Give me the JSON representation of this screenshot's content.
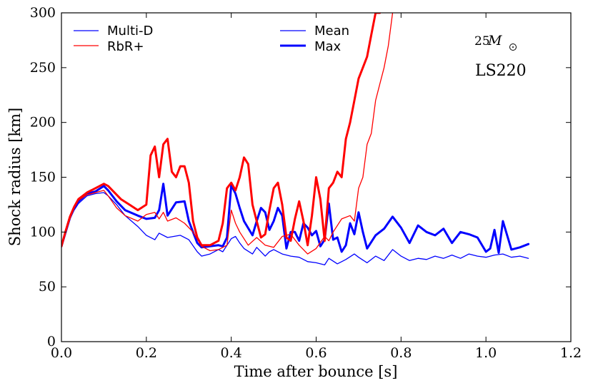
{
  "chart_data": {
    "type": "line",
    "title": "",
    "xlabel": "Time after bounce [s]",
    "ylabel": "Shock radius [km]",
    "xlim": [
      0.0,
      1.2
    ],
    "ylim": [
      0,
      300
    ],
    "xticks": [
      "0.0",
      "0.2",
      "0.4",
      "0.6",
      "0.8",
      "1.0",
      "1.2"
    ],
    "xtick_values": [
      0.0,
      0.2,
      0.4,
      0.6,
      0.8,
      1.0,
      1.2
    ],
    "yticks": [
      "0",
      "50",
      "100",
      "150",
      "200",
      "250",
      "300"
    ],
    "ytick_values": [
      0,
      50,
      100,
      150,
      200,
      250,
      300
    ],
    "grid": false,
    "legend_position": "top-left",
    "legend": [
      {
        "label": "Multi-D",
        "color": "#0000ff",
        "style": "thin"
      },
      {
        "label": "RbR+",
        "color": "#ff0000",
        "style": "thin"
      },
      {
        "label": "Mean",
        "color": "#0000ff",
        "style": "thin"
      },
      {
        "label": "Max",
        "color": "#0000ff",
        "style": "thick"
      }
    ],
    "annotations": {
      "mass_number": "25",
      "mass_symbol": "M",
      "eos": "LS220"
    },
    "series": [
      {
        "name": "Multi-D Mean",
        "color": "#0000ff",
        "width": "thin",
        "x": [
          0.0,
          0.01,
          0.02,
          0.03,
          0.04,
          0.06,
          0.08,
          0.1,
          0.11,
          0.13,
          0.15,
          0.18,
          0.2,
          0.22,
          0.23,
          0.25,
          0.28,
          0.3,
          0.32,
          0.33,
          0.35,
          0.37,
          0.38,
          0.4,
          0.41,
          0.42,
          0.43,
          0.45,
          0.46,
          0.48,
          0.49,
          0.5,
          0.52,
          0.54,
          0.56,
          0.58,
          0.6,
          0.62,
          0.63,
          0.65,
          0.67,
          0.69,
          0.7,
          0.72,
          0.74,
          0.76,
          0.78,
          0.8,
          0.82,
          0.84,
          0.86,
          0.88,
          0.9,
          0.92,
          0.94,
          0.96,
          0.98,
          1.0,
          1.02,
          1.04,
          1.06,
          1.08,
          1.1
        ],
        "y": [
          87,
          100,
          112,
          120,
          126,
          133,
          135,
          136,
          133,
          125,
          115,
          105,
          97,
          93,
          99,
          95,
          97,
          93,
          82,
          78,
          80,
          84,
          82,
          94,
          96,
          90,
          85,
          80,
          86,
          78,
          82,
          84,
          80,
          78,
          77,
          73,
          72,
          70,
          76,
          71,
          75,
          80,
          77,
          72,
          78,
          74,
          84,
          78,
          74,
          76,
          75,
          78,
          76,
          79,
          76,
          80,
          78,
          77,
          79,
          80,
          77,
          78,
          76
        ]
      },
      {
        "name": "Multi-D Max",
        "color": "#0000ff",
        "width": "thick",
        "x": [
          0.0,
          0.01,
          0.02,
          0.03,
          0.04,
          0.06,
          0.08,
          0.1,
          0.11,
          0.13,
          0.15,
          0.18,
          0.2,
          0.22,
          0.23,
          0.24,
          0.25,
          0.27,
          0.29,
          0.3,
          0.32,
          0.33,
          0.35,
          0.37,
          0.38,
          0.39,
          0.4,
          0.41,
          0.42,
          0.43,
          0.45,
          0.46,
          0.47,
          0.48,
          0.49,
          0.5,
          0.51,
          0.52,
          0.53,
          0.54,
          0.55,
          0.56,
          0.57,
          0.58,
          0.59,
          0.6,
          0.61,
          0.62,
          0.63,
          0.64,
          0.65,
          0.66,
          0.67,
          0.68,
          0.69,
          0.7,
          0.71,
          0.72,
          0.74,
          0.76,
          0.78,
          0.8,
          0.82,
          0.84,
          0.86,
          0.88,
          0.9,
          0.92,
          0.94,
          0.96,
          0.98,
          1.0,
          1.01,
          1.02,
          1.03,
          1.04,
          1.06,
          1.08,
          1.1
        ],
        "y": [
          87,
          100,
          113,
          122,
          128,
          135,
          137,
          142,
          138,
          128,
          120,
          115,
          112,
          113,
          120,
          144,
          115,
          127,
          128,
          110,
          90,
          86,
          87,
          88,
          87,
          95,
          143,
          135,
          122,
          110,
          97,
          110,
          122,
          118,
          102,
          110,
          122,
          115,
          85,
          100,
          100,
          92,
          108,
          104,
          97,
          101,
          87,
          93,
          126,
          93,
          95,
          82,
          88,
          108,
          98,
          118,
          100,
          85,
          97,
          103,
          114,
          104,
          90,
          106,
          100,
          97,
          103,
          90,
          100,
          98,
          95,
          82,
          85,
          102,
          81,
          110,
          84,
          86,
          89
        ]
      },
      {
        "name": "RbR+ Mean",
        "color": "#ff0000",
        "width": "thin",
        "x": [
          0.0,
          0.01,
          0.02,
          0.03,
          0.04,
          0.06,
          0.08,
          0.1,
          0.11,
          0.13,
          0.15,
          0.18,
          0.2,
          0.22,
          0.23,
          0.24,
          0.25,
          0.27,
          0.29,
          0.31,
          0.33,
          0.35,
          0.37,
          0.39,
          0.4,
          0.41,
          0.42,
          0.44,
          0.46,
          0.48,
          0.5,
          0.52,
          0.54,
          0.56,
          0.58,
          0.6,
          0.62,
          0.63,
          0.64,
          0.66,
          0.68,
          0.69,
          0.7,
          0.71,
          0.72,
          0.73,
          0.74,
          0.75,
          0.76,
          0.77,
          0.78
        ],
        "y": [
          87,
          100,
          112,
          122,
          129,
          134,
          136,
          138,
          133,
          122,
          115,
          110,
          116,
          118,
          112,
          118,
          110,
          113,
          108,
          100,
          87,
          83,
          84,
          88,
          120,
          108,
          100,
          88,
          95,
          88,
          86,
          96,
          98,
          88,
          80,
          85,
          96,
          92,
          100,
          112,
          115,
          110,
          140,
          150,
          180,
          190,
          220,
          235,
          250,
          270,
          300
        ]
      },
      {
        "name": "RbR+ Max",
        "color": "#ff0000",
        "width": "thick",
        "x": [
          0.0,
          0.01,
          0.02,
          0.03,
          0.04,
          0.06,
          0.08,
          0.1,
          0.11,
          0.12,
          0.14,
          0.16,
          0.18,
          0.2,
          0.21,
          0.22,
          0.23,
          0.24,
          0.25,
          0.26,
          0.27,
          0.28,
          0.29,
          0.3,
          0.31,
          0.32,
          0.33,
          0.35,
          0.37,
          0.38,
          0.39,
          0.4,
          0.41,
          0.42,
          0.43,
          0.44,
          0.45,
          0.46,
          0.47,
          0.48,
          0.49,
          0.5,
          0.51,
          0.52,
          0.53,
          0.54,
          0.55,
          0.56,
          0.57,
          0.58,
          0.59,
          0.6,
          0.61,
          0.62,
          0.63,
          0.64,
          0.65,
          0.66,
          0.67,
          0.68,
          0.69,
          0.7,
          0.71,
          0.72,
          0.73,
          0.74,
          0.75
        ],
        "y": [
          87,
          101,
          114,
          123,
          130,
          136,
          140,
          144,
          142,
          138,
          130,
          125,
          120,
          125,
          170,
          178,
          150,
          180,
          185,
          155,
          150,
          160,
          160,
          145,
          110,
          95,
          88,
          88,
          92,
          108,
          140,
          145,
          138,
          150,
          168,
          162,
          125,
          110,
          95,
          98,
          120,
          140,
          145,
          125,
          95,
          92,
          112,
          128,
          110,
          88,
          115,
          150,
          130,
          92,
          140,
          145,
          155,
          150,
          185,
          200,
          220,
          240,
          250,
          260,
          280,
          300,
          300
        ]
      }
    ]
  }
}
